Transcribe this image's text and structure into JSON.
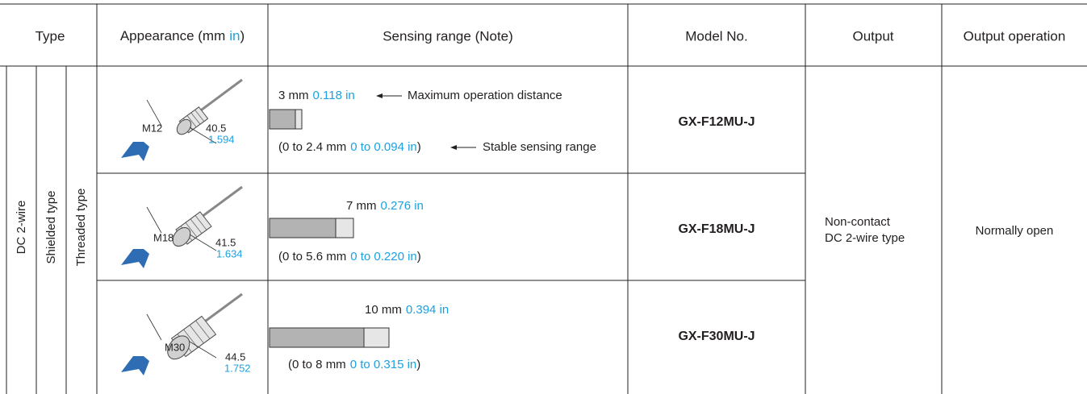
{
  "header": {
    "type": "Type",
    "appearance": {
      "text": "Appearance (mm",
      "unit": "in",
      "close": ")"
    },
    "sensing_range": "Sensing range (Note)",
    "model_no": "Model No.",
    "output": "Output",
    "output_operation": "Output operation"
  },
  "type": {
    "power": "DC 2-wire",
    "shield": "Shielded type",
    "mount": "Threaded type"
  },
  "rows": [
    {
      "appearance": {
        "thread": "M12",
        "length_mm": "40.5",
        "length_in": "1.594"
      },
      "sensing": {
        "max_mm": "3 mm",
        "max_in": "0.118 in",
        "max_note": "Maximum operation distance",
        "stable_mm": "(0 to 2.4 mm",
        "stable_in": "0 to 0.094 in",
        "stable_close": ")",
        "stable_note": "Stable sensing range"
      },
      "model": "GX-F12MU-J"
    },
    {
      "appearance": {
        "thread": "M18",
        "length_mm": "41.5",
        "length_in": "1.634"
      },
      "sensing": {
        "max_mm": "7 mm",
        "max_in": "0.276 in",
        "stable_mm": "(0 to 5.6 mm",
        "stable_in": "0 to 0.220 in",
        "stable_close": ")"
      },
      "model": "GX-F18MU-J"
    },
    {
      "appearance": {
        "thread": "M30",
        "length_mm": "44.5",
        "length_in": "1.752"
      },
      "sensing": {
        "max_mm": "10 mm",
        "max_in": "0.394 in",
        "stable_mm": "(0 to 8 mm",
        "stable_in": "0 to 0.315 in",
        "stable_close": ")"
      },
      "model": "GX-F30MU-J"
    }
  ],
  "output": [
    "Non-contact",
    "DC 2-wire type"
  ],
  "output_operation": "Normally open"
}
